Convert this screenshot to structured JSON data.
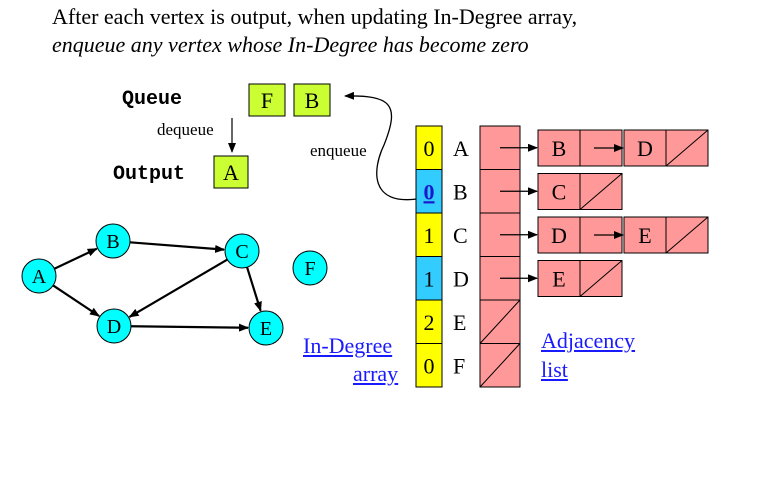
{
  "title": {
    "line1": "After each vertex is output, when updating In-Degree array,",
    "line2": "enqueue any vertex whose In-Degree has become zero"
  },
  "queue": {
    "label": "Queue",
    "items": [
      "F",
      "B"
    ],
    "dequeue_label": "dequeue",
    "enqueue_label": "enqueue"
  },
  "output": {
    "label": "Output",
    "items": [
      "A"
    ]
  },
  "graph": {
    "nodes": [
      "A",
      "B",
      "C",
      "D",
      "E",
      "F"
    ],
    "edges": [
      [
        "A",
        "B"
      ],
      [
        "A",
        "D"
      ],
      [
        "B",
        "C"
      ],
      [
        "C",
        "D"
      ],
      [
        "C",
        "E"
      ],
      [
        "D",
        "E"
      ]
    ]
  },
  "indegree": {
    "rows": [
      {
        "vertex": "A",
        "value": "0",
        "highlight": "yellow",
        "underline": false
      },
      {
        "vertex": "B",
        "value": "0",
        "highlight": "cyan",
        "underline": true
      },
      {
        "vertex": "C",
        "value": "1",
        "highlight": "yellow",
        "underline": false
      },
      {
        "vertex": "D",
        "value": "1",
        "highlight": "cyan",
        "underline": false
      },
      {
        "vertex": "E",
        "value": "2",
        "highlight": "yellow",
        "underline": false
      },
      {
        "vertex": "F",
        "value": "0",
        "highlight": "yellow",
        "underline": false
      }
    ],
    "caption_line1": "In-Degree",
    "caption_line2": "array"
  },
  "adjacency": {
    "lists": [
      [
        "B",
        "D"
      ],
      [
        "C"
      ],
      [
        "D",
        "E"
      ],
      [
        "E"
      ],
      [],
      []
    ],
    "caption_line1": "Adjacency",
    "caption_line2": "list"
  },
  "colors": {
    "node": "#00ffff",
    "queue_box": "#ccff33",
    "indegree_yellow": "#ffff00",
    "indegree_cyan": "#33ccff",
    "list_cell": "#ff9999",
    "link": "#1a1aff"
  }
}
